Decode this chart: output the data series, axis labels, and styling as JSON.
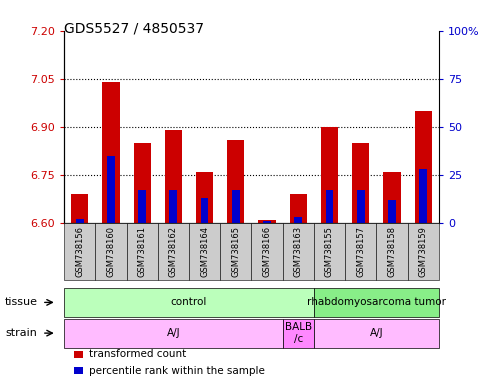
{
  "title": "GDS5527 / 4850537",
  "samples": [
    "GSM738156",
    "GSM738160",
    "GSM738161",
    "GSM738162",
    "GSM738164",
    "GSM738165",
    "GSM738166",
    "GSM738163",
    "GSM738155",
    "GSM738157",
    "GSM738158",
    "GSM738159"
  ],
  "transformed_count": [
    6.69,
    7.04,
    6.85,
    6.89,
    6.76,
    6.86,
    6.61,
    6.69,
    6.9,
    6.85,
    6.76,
    6.95
  ],
  "percentile_rank": [
    2,
    35,
    17,
    17,
    13,
    17,
    1,
    3,
    17,
    17,
    12,
    28
  ],
  "ylim_left": [
    6.6,
    7.2
  ],
  "ylim_right": [
    0,
    100
  ],
  "yticks_left": [
    6.6,
    6.75,
    6.9,
    7.05,
    7.2
  ],
  "yticks_right": [
    0,
    25,
    50,
    75,
    100
  ],
  "grid_values": [
    7.05,
    6.9,
    6.75
  ],
  "bar_bottom": 6.6,
  "bar_color_red": "#cc0000",
  "bar_color_blue": "#0000cc",
  "blue_bar_width": 0.25,
  "red_bar_width": 0.55,
  "tissue_labels": [
    {
      "text": "control",
      "start": 0,
      "end": 7,
      "color": "#bbffbb"
    },
    {
      "text": "rhabdomyosarcoma tumor",
      "start": 8,
      "end": 11,
      "color": "#88ee88"
    }
  ],
  "strain_labels": [
    {
      "text": "A/J",
      "start": 0,
      "end": 6,
      "color": "#ffbbff"
    },
    {
      "text": "BALB\n/c",
      "start": 7,
      "end": 7,
      "color": "#ff88ff"
    },
    {
      "text": "A/J",
      "start": 8,
      "end": 11,
      "color": "#ffbbff"
    }
  ],
  "tissue_row_label": "tissue",
  "strain_row_label": "strain",
  "legend_items": [
    {
      "label": "transformed count",
      "color": "#cc0000"
    },
    {
      "label": "percentile rank within the sample",
      "color": "#0000cc"
    }
  ],
  "bg_color": "#ffffff",
  "tick_label_color_left": "#cc0000",
  "tick_label_color_right": "#0000cc",
  "tick_fontsize": 8,
  "title_fontsize": 10,
  "xtick_bg_color": "#cccccc",
  "xtick_fontsize": 6,
  "row_label_fontsize": 8,
  "legend_fontsize": 7.5
}
